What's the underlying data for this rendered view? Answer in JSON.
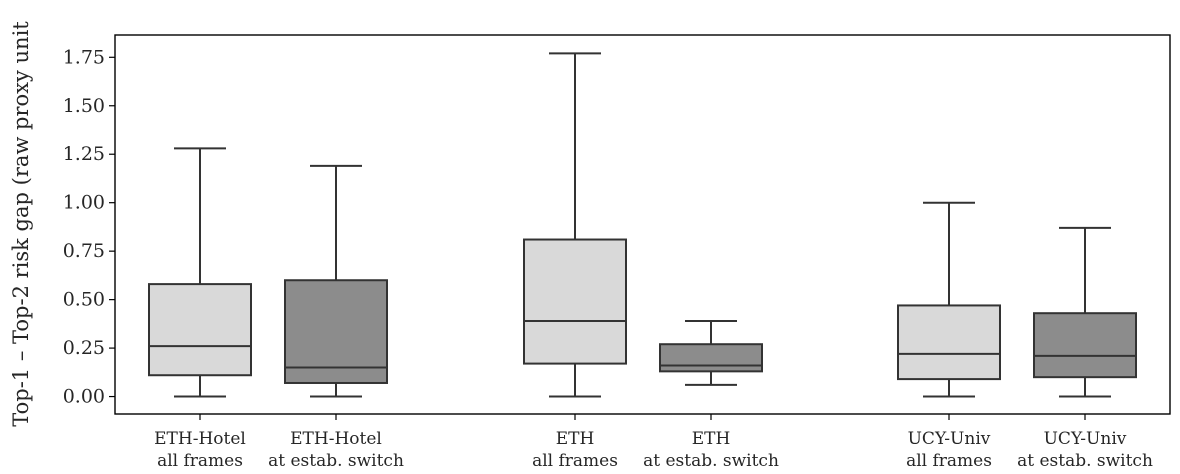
{
  "chart_data": {
    "type": "box",
    "ylabel": "Top-1 – Top-2 risk gap (raw proxy unit",
    "ylim": [
      -0.09,
      1.865
    ],
    "yticks": [
      "0.00",
      "0.25",
      "0.50",
      "0.75",
      "1.00",
      "1.25",
      "1.50",
      "1.75"
    ],
    "grid": false,
    "colors": {
      "all_frames": "#d9d9d9",
      "at_switch": "#8c8c8c",
      "line": "#333333"
    },
    "boxes": [
      {
        "label_line1": "ETH-Hotel",
        "label_line2": "all frames",
        "whisker_low": 0.0,
        "q1": 0.11,
        "median": 0.26,
        "q3": 0.58,
        "whisker_high": 1.28,
        "fill": "all_frames"
      },
      {
        "label_line1": "ETH-Hotel",
        "label_line2": "at estab. switch",
        "whisker_low": 0.0,
        "q1": 0.07,
        "median": 0.15,
        "q3": 0.6,
        "whisker_high": 1.19,
        "fill": "at_switch"
      },
      {
        "label_line1": "ETH",
        "label_line2": "all frames",
        "whisker_low": 0.0,
        "q1": 0.17,
        "median": 0.39,
        "q3": 0.81,
        "whisker_high": 1.77,
        "fill": "all_frames"
      },
      {
        "label_line1": "ETH",
        "label_line2": "at estab. switch",
        "whisker_low": 0.06,
        "q1": 0.13,
        "median": 0.16,
        "q3": 0.27,
        "whisker_high": 0.39,
        "fill": "at_switch"
      },
      {
        "label_line1": "UCY-Univ",
        "label_line2": "all frames",
        "whisker_low": 0.0,
        "q1": 0.09,
        "median": 0.22,
        "q3": 0.47,
        "whisker_high": 1.0,
        "fill": "all_frames"
      },
      {
        "label_line1": "UCY-Univ",
        "label_line2": "at estab. switch",
        "whisker_low": 0.0,
        "q1": 0.1,
        "median": 0.21,
        "q3": 0.43,
        "whisker_high": 0.87,
        "fill": "at_switch"
      }
    ]
  }
}
